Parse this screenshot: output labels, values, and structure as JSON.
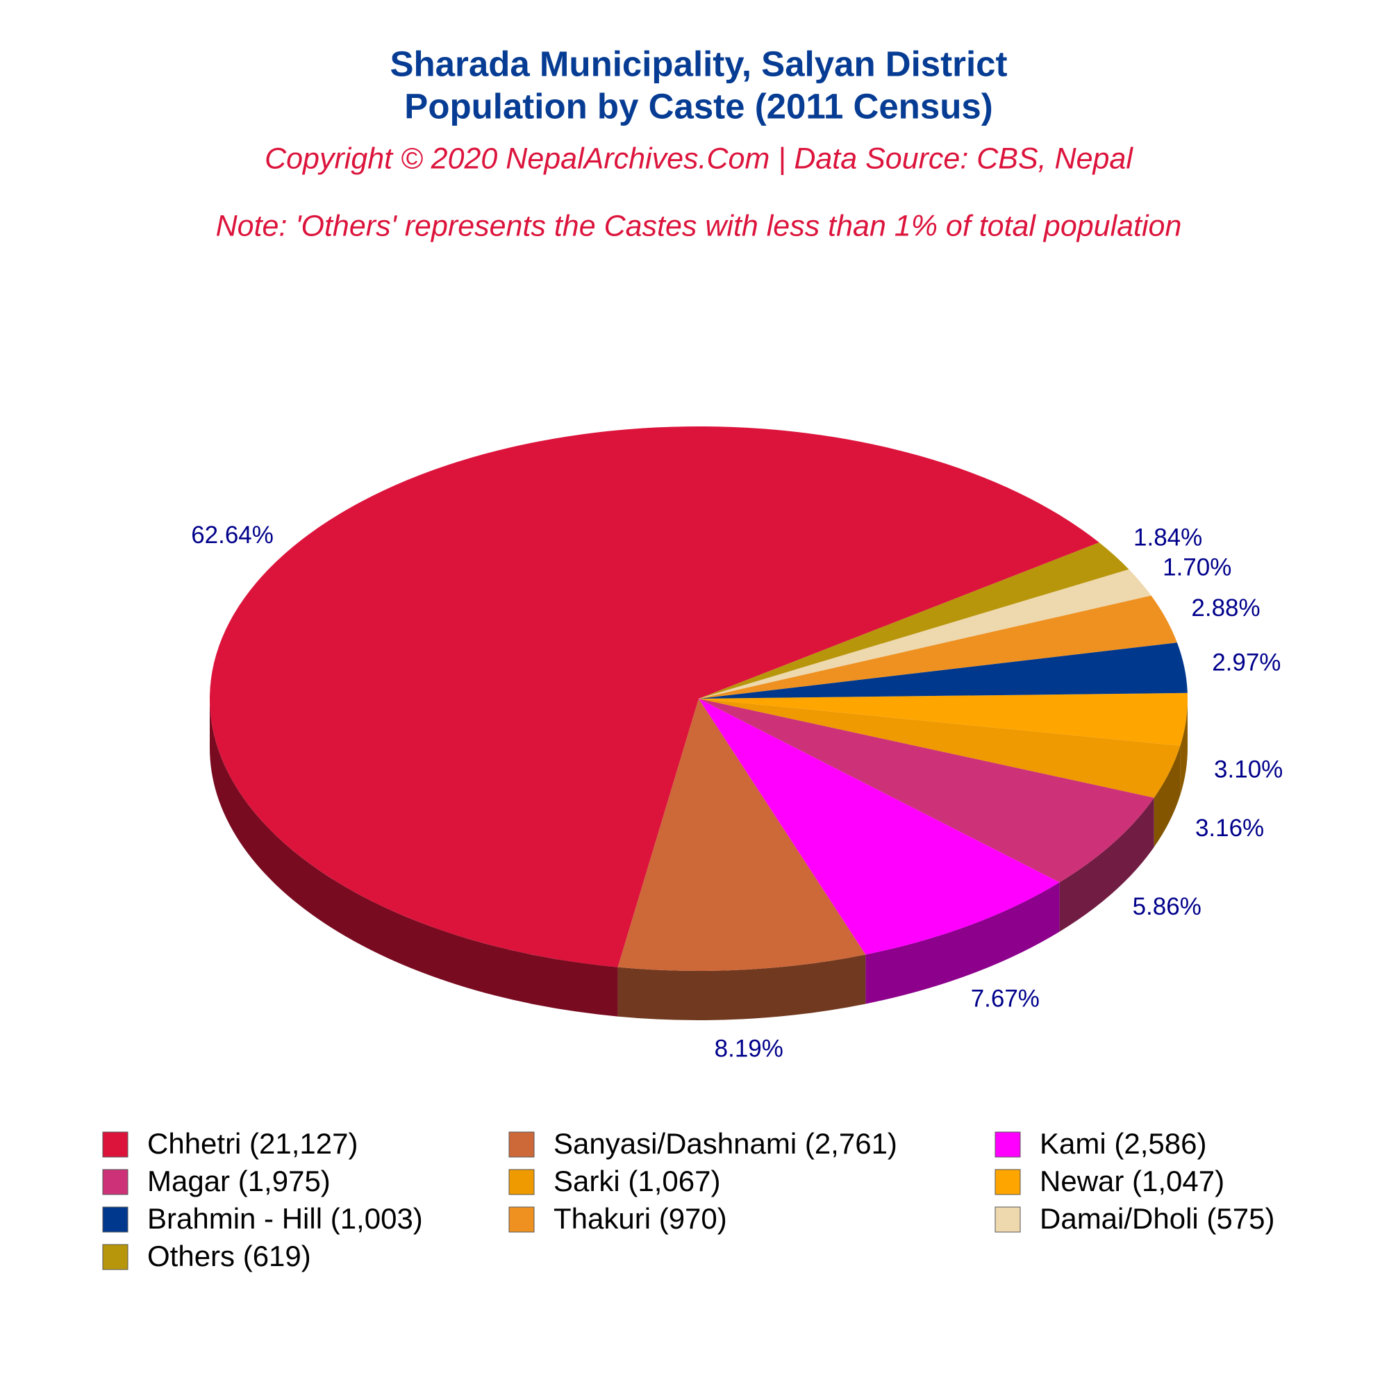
{
  "chart_data": {
    "type": "pie",
    "title": [
      "Sharada Municipality, Salyan District",
      "Population by Caste (2011 Census)"
    ],
    "subtitle": "Copyright © 2020 NepalArchives.Com | Data Source: CBS, Nepal",
    "note": "Note: 'Others' represents the Castes with less than 1% of total population",
    "categories": [
      "Chhetri (21,127)",
      "Sanyasi/Dashnami (2,761)",
      "Kami (2,586)",
      "Magar (1,975)",
      "Sarki (1,067)",
      "Newar (1,047)",
      "Brahmin - Hill (1,003)",
      "Thakuri (970)",
      "Damai/Dholi (575)",
      "Others (619)"
    ],
    "values": [
      62.64,
      8.19,
      7.67,
      5.86,
      3.16,
      3.1,
      2.97,
      2.88,
      1.7,
      1.84
    ],
    "value_labels": [
      "62.64%",
      "8.19%",
      "7.67%",
      "5.86%",
      "3.16%",
      "3.10%",
      "2.97%",
      "2.88%",
      "1.70%",
      "1.84%"
    ],
    "colors": [
      "#DC143C",
      "#CD6839",
      "#FF00FF",
      "#CD3278",
      "#EE9A00",
      "#FFA500",
      "#00388E",
      "#EE9121",
      "#EED8AE",
      "#B8960B"
    ],
    "legend": "bottom"
  }
}
